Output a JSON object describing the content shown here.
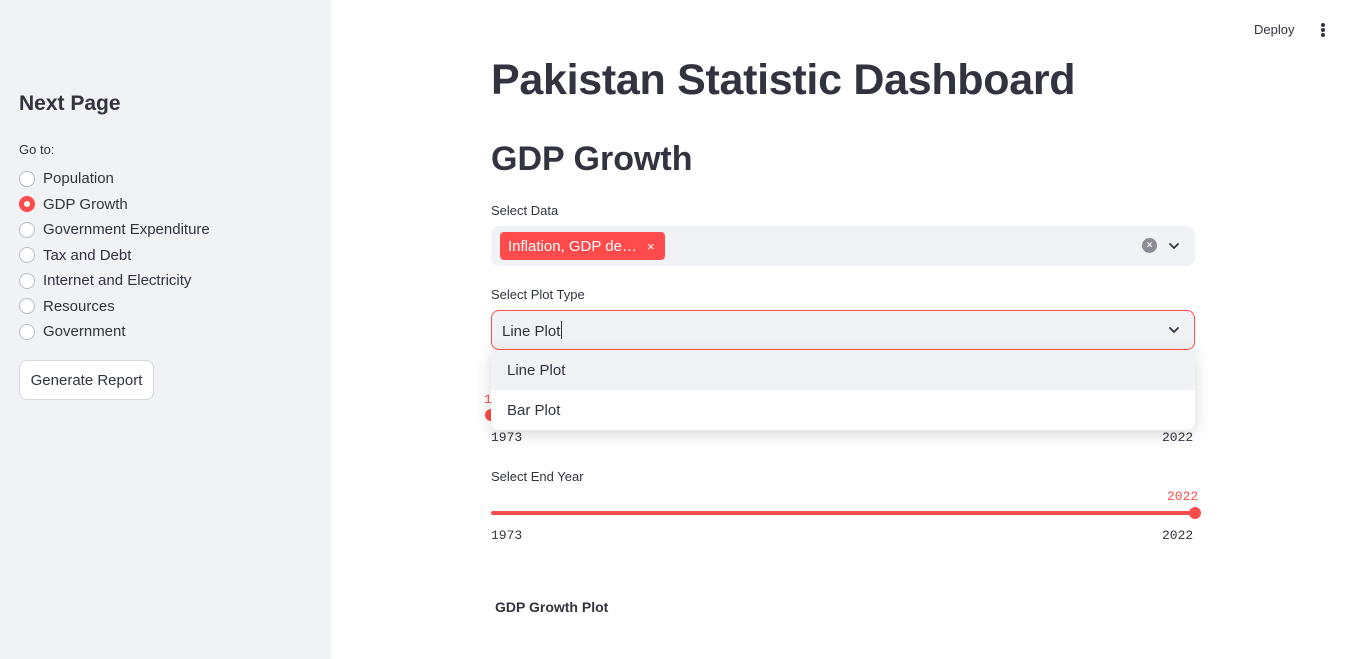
{
  "header": {
    "deploy_label": "Deploy",
    "menu_icon": "kebab-menu-icon"
  },
  "sidebar": {
    "title": "Next Page",
    "goto_label": "Go to:",
    "items": [
      {
        "label": "Population",
        "selected": false
      },
      {
        "label": "GDP Growth",
        "selected": true
      },
      {
        "label": "Government Expenditure",
        "selected": false
      },
      {
        "label": "Tax and Debt",
        "selected": false
      },
      {
        "label": "Internet and Electricity",
        "selected": false
      },
      {
        "label": "Resources",
        "selected": false
      },
      {
        "label": "Government",
        "selected": false
      }
    ],
    "report_button": "Generate Report"
  },
  "main": {
    "title": "Pakistan Statistic Dashboard",
    "section": "GDP Growth",
    "select_data": {
      "label": "Select Data",
      "tag": "Inflation, GDP de…",
      "tag_remove": "×",
      "clear_icon": "×"
    },
    "plot_type": {
      "label": "Select Plot Type",
      "value": "Line Plot",
      "options": [
        "Line Plot",
        "Bar Plot"
      ]
    },
    "start_year": {
      "hidden_value_fragment": "1",
      "min": "1973",
      "max": "2022"
    },
    "end_year": {
      "label": "Select End Year",
      "value": "2022",
      "min": "1973",
      "max": "2022"
    },
    "plot_title": "GDP Growth Plot"
  },
  "colors": {
    "accent": "#ff4b4b",
    "sidebar_bg": "#f0f2f6",
    "text": "#31333f"
  }
}
